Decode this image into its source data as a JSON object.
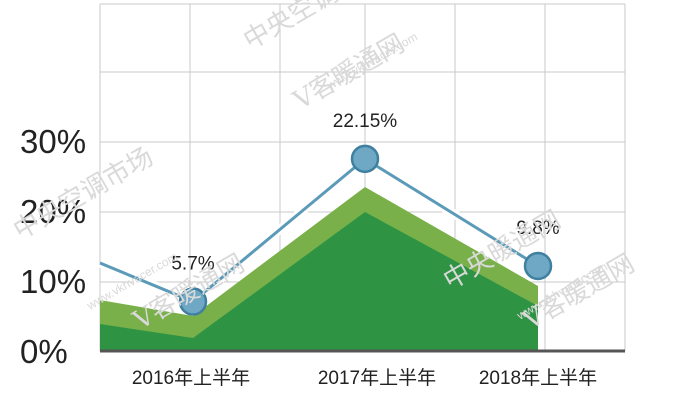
{
  "chart_data": {
    "type": "line",
    "categories": [
      "2016年上半年",
      "2017年上半年",
      "2018年上半年"
    ],
    "series": [
      {
        "values": [
          5.7,
          22.15,
          9.8
        ],
        "color": "#5b9ab8",
        "marker_color": "#6ea8c4"
      }
    ],
    "data_labels": [
      "5.7%",
      "22.15%",
      "9.8%"
    ],
    "y_ticks": [
      "0%",
      "10%",
      "20%",
      "30%"
    ],
    "ylim": [
      0,
      40
    ],
    "grid": true,
    "background_areas": {
      "light_color": "#79b04a",
      "dark_color": "#2e9444"
    }
  },
  "watermark": {
    "cn": [
      "中央空调市场",
      "中央暖通网",
      "V客暖通网"
    ],
    "url": "www.vkhvacer.com"
  }
}
